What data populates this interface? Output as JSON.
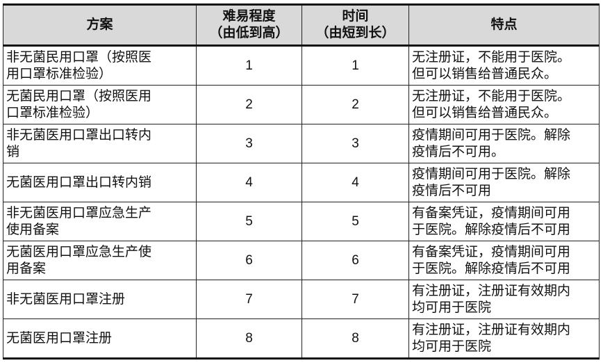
{
  "headers": [
    "方案",
    "难易程度\n（由低到高）",
    "时间\n（由短到长）",
    "特点"
  ],
  "rows": [
    {
      "plan": "非无菌民用口罩（按照医\n用口罩标准检验）",
      "difficulty": "1",
      "time": "1",
      "feature": "无注册证，不能用于医院。\n但可以销售给普通民众。"
    },
    {
      "plan": "无菌民用口罩（按照医用\n口罩标准检验）",
      "difficulty": "2",
      "time": "2",
      "feature": "无注册证，不能用于医院。\n但可以销售给普通民众。"
    },
    {
      "plan": "非无菌医用口罩出口转内\n销",
      "difficulty": "3",
      "time": "3",
      "feature": "疫情期间可用于医院。解除\n疫情后不可用。"
    },
    {
      "plan": "无菌医用口罩出口转内销",
      "difficulty": "4",
      "time": "4",
      "feature": "疫情期间可用于医院。解除\n疫情后不可用"
    },
    {
      "plan": "非无菌医用口罩应急生产\n使用备案",
      "difficulty": "5",
      "time": "5",
      "feature": "有备案凭证，疫情期间可用\n于医院。解除疫情后不可用"
    },
    {
      "plan": "无菌医用口罩应急生产使\n用备案",
      "difficulty": "6",
      "time": "6",
      "feature": "有备案凭证，疫情期间可用\n于医院。解除疫情后不可用"
    },
    {
      "plan": "非无菌医用口罩注册",
      "difficulty": "7",
      "time": "7",
      "feature": "有注册证，注册证有效期内\n均可用于医院"
    },
    {
      "plan": "无菌医用口罩注册",
      "difficulty": "8",
      "time": "8",
      "feature": "有注册证，注册证有效期内\n均可用于医院"
    }
  ]
}
